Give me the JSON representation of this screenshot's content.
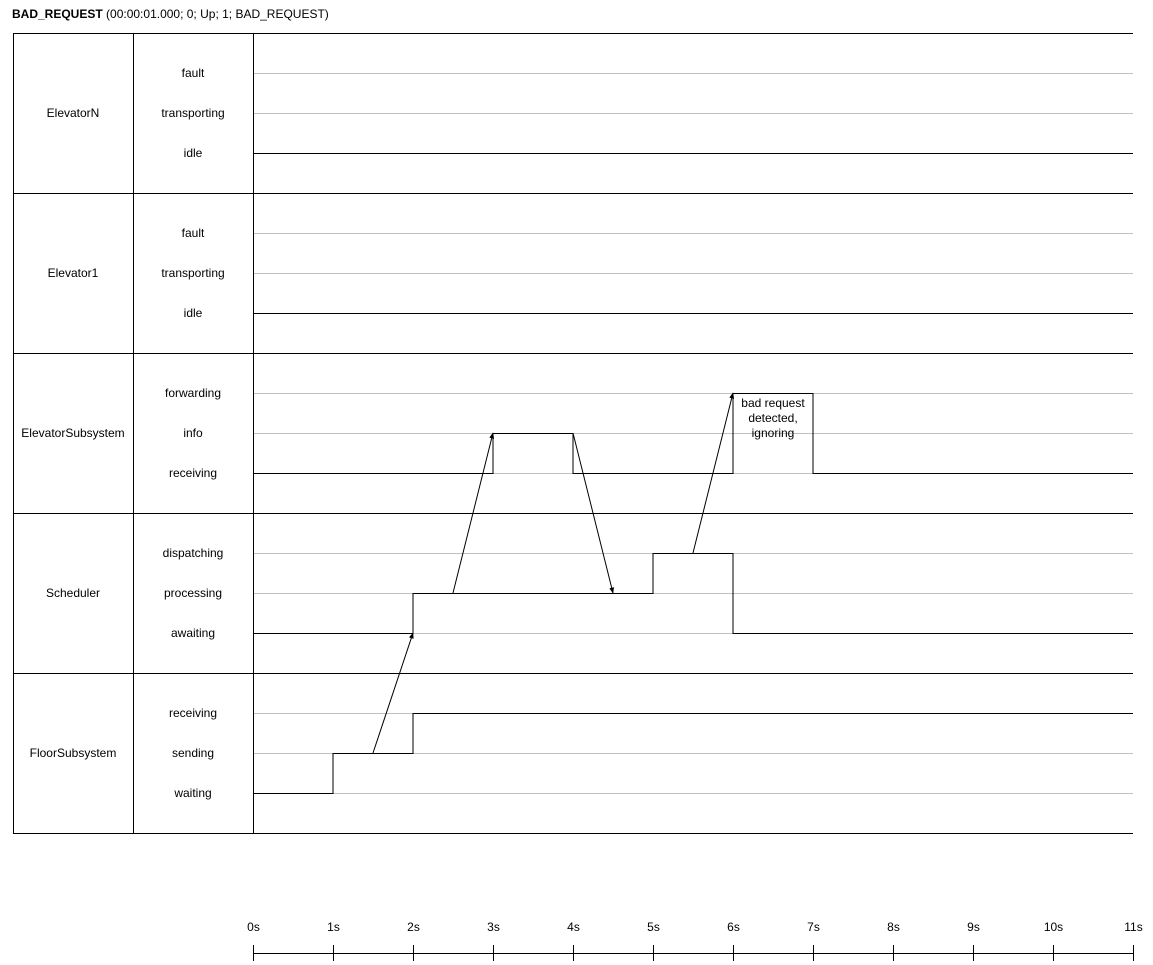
{
  "header": {
    "name": "BAD_REQUEST",
    "params": "(00:00:01.000; 0; Up; 1; BAD_REQUEST)"
  },
  "lanes": [
    {
      "name": "ElevatorN",
      "states": [
        "fault",
        "transporting",
        "idle"
      ]
    },
    {
      "name": "Elevator1",
      "states": [
        "fault",
        "transporting",
        "idle"
      ]
    },
    {
      "name": "ElevatorSubsystem",
      "states": [
        "forwarding",
        "info",
        "receiving"
      ]
    },
    {
      "name": "Scheduler",
      "states": [
        "dispatching",
        "processing",
        "awaiting"
      ]
    },
    {
      "name": "FloorSubsystem",
      "states": [
        "receiving",
        "sending",
        "waiting"
      ]
    }
  ],
  "timeline": {
    "ticks": [
      "0s",
      "1s",
      "2s",
      "3s",
      "4s",
      "5s",
      "6s",
      "7s",
      "8s",
      "9s",
      "10s",
      "11s"
    ],
    "end": 11
  },
  "signals": [
    {
      "lane": 0,
      "steps": [
        [
          0,
          2
        ]
      ]
    },
    {
      "lane": 1,
      "steps": [
        [
          0,
          2
        ]
      ]
    },
    {
      "lane": 2,
      "steps": [
        [
          0,
          2
        ],
        [
          3,
          1
        ],
        [
          4,
          2
        ],
        [
          6,
          0
        ],
        [
          7,
          2
        ]
      ]
    },
    {
      "lane": 3,
      "steps": [
        [
          0,
          2
        ],
        [
          2,
          1
        ],
        [
          5,
          0
        ],
        [
          6,
          2
        ]
      ]
    },
    {
      "lane": 4,
      "steps": [
        [
          0,
          2
        ],
        [
          1,
          1
        ],
        [
          2,
          0
        ]
      ]
    }
  ],
  "messages": [
    {
      "from": [
        4,
        1,
        1.5
      ],
      "to": [
        3,
        2,
        2
      ]
    },
    {
      "from": [
        3,
        1,
        2.5
      ],
      "to": [
        2,
        1,
        3
      ]
    },
    {
      "from": [
        2,
        1,
        4
      ],
      "to": [
        3,
        1,
        4.5
      ]
    },
    {
      "from": [
        3,
        0,
        5.5
      ],
      "to": [
        2,
        0,
        6
      ]
    }
  ],
  "annotation": {
    "lines": [
      "bad request",
      "detected,",
      "ignoring"
    ],
    "at_time": 6.5,
    "lane": 2
  }
}
